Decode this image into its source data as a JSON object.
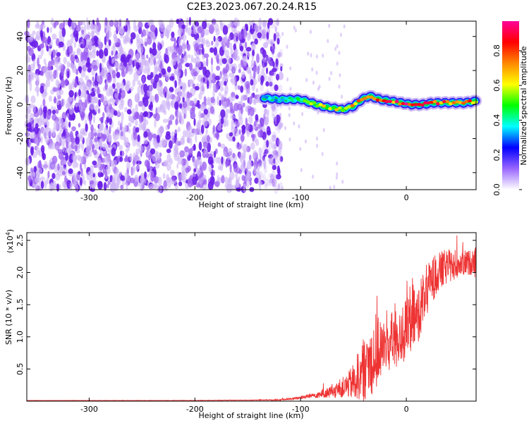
{
  "title": "C2E3.2023.067.20.24.R15",
  "chart_data": [
    {
      "type": "heatmap",
      "name": "spectrogram",
      "title": "C2E3.2023.067.20.24.R15",
      "xlabel": "Height of straight line (km)",
      "ylabel": "Frequency (Hz)",
      "xlim": [
        -359,
        66
      ],
      "ylim": [
        -50,
        49
      ],
      "xticks": [
        -300,
        -200,
        -100,
        0
      ],
      "yticks": [
        -40,
        -20,
        0,
        20,
        40
      ],
      "xtick_labels": [
        "-300",
        "-200",
        "-100",
        "0"
      ],
      "ytick_labels": [
        "-40",
        "-20",
        "0",
        "20",
        "40"
      ],
      "noise_region_x": [
        -359,
        -118
      ],
      "signal_trace": {
        "x": [
          -135,
          -120,
          -110,
          -100,
          -90,
          -80,
          -70,
          -60,
          -50,
          -42,
          -35,
          -25,
          -15,
          -5,
          5,
          15,
          25,
          35,
          45,
          55,
          66
        ],
        "y": [
          4,
          3,
          3,
          3,
          1,
          -1,
          -2,
          -3,
          -1,
          3,
          5,
          3,
          2,
          1,
          0,
          0,
          1,
          1,
          1,
          1,
          2
        ],
        "amplitude": [
          0.3,
          0.4,
          0.45,
          0.5,
          0.55,
          0.6,
          0.65,
          0.7,
          0.7,
          0.8,
          0.75,
          0.8,
          0.85,
          0.9,
          0.95,
          0.9,
          0.85,
          0.85,
          0.8,
          0.8,
          0.75
        ]
      },
      "colorbar": {
        "label": "Normalized spectral amplitude",
        "range": [
          0,
          0.97
        ],
        "ticks": [
          0.0,
          0.2,
          0.4,
          0.6,
          0.8
        ],
        "tick_labels": [
          "0.0",
          "0.2",
          "0.4",
          "0.6",
          "0.8"
        ],
        "colors": [
          "#ffffff",
          "#9966ff",
          "#0000ff",
          "#00ffff",
          "#00ff00",
          "#ffff00",
          "#ff8800",
          "#ff0000",
          "#ff0099"
        ]
      }
    },
    {
      "type": "line",
      "name": "snr",
      "xlabel": "Height of straight line (km)",
      "ylabel": "SNR (10 * v/v)",
      "y_exponent_label": "(x10",
      "y_exponent": "4",
      "y_exponent_close": ")",
      "xlim": [
        -359,
        66
      ],
      "ylim": [
        0,
        2.62
      ],
      "xticks": [
        -300,
        -200,
        -100,
        0
      ],
      "yticks": [
        0.5,
        1.0,
        1.5,
        2.0,
        2.5
      ],
      "xtick_labels": [
        "-300",
        "-200",
        "-100",
        "0"
      ],
      "ytick_labels": [
        "0.5",
        "1.0",
        "1.5",
        "2.0",
        "2.5"
      ],
      "color": "#ee3333",
      "series": [
        {
          "x": [
            -359,
            -300,
            -200,
            -150,
            -120,
            -105,
            -95,
            -85,
            -78,
            -70,
            -62,
            -55,
            -50,
            -45,
            -40,
            -35,
            -30,
            -25,
            -20,
            -15,
            -10,
            -5,
            0,
            5,
            10,
            15,
            20,
            25,
            30,
            35,
            40,
            45,
            50,
            55,
            60,
            66
          ],
          "y": [
            0.01,
            0.01,
            0.01,
            0.015,
            0.02,
            0.04,
            0.07,
            0.1,
            0.12,
            0.15,
            0.2,
            0.25,
            0.3,
            0.4,
            0.5,
            0.6,
            0.72,
            0.8,
            0.85,
            0.9,
            1.0,
            1.05,
            1.1,
            1.25,
            1.3,
            1.55,
            1.75,
            1.9,
            2.0,
            2.05,
            2.1,
            2.12,
            2.15,
            2.15,
            2.15,
            2.2
          ],
          "spread": [
            0.002,
            0.002,
            0.003,
            0.004,
            0.01,
            0.02,
            0.03,
            0.05,
            0.07,
            0.1,
            0.15,
            0.2,
            0.3,
            0.4,
            0.5,
            0.55,
            0.6,
            0.5,
            0.45,
            0.45,
            0.55,
            0.5,
            0.5,
            0.5,
            0.45,
            0.45,
            0.4,
            0.35,
            0.3,
            0.3,
            0.25,
            0.25,
            0.2,
            0.2,
            0.2,
            0.2
          ]
        }
      ]
    }
  ]
}
